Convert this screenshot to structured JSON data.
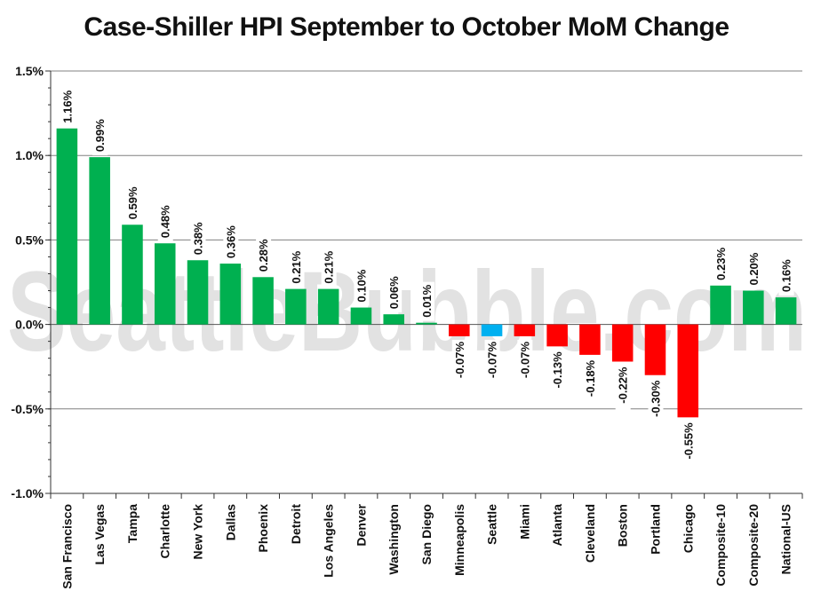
{
  "title": "Case-Shiller HPI September to October MoM Change",
  "watermark": "SeattleBubble.com",
  "colors": {
    "positive": "#00b050",
    "negative": "#ff0000",
    "highlight": "#00b0f0",
    "grid": "#808080",
    "watermark": "#e2e2e2"
  },
  "chart_data": {
    "type": "bar",
    "title": "Case-Shiller HPI September to October MoM Change",
    "categories": [
      "San Francisco",
      "Las Vegas",
      "Tampa",
      "Charlotte",
      "New York",
      "Dallas",
      "Phoenix",
      "Detroit",
      "Los Angeles",
      "Denver",
      "Washington",
      "San Diego",
      "Minneapolis",
      "Seattle",
      "Miami",
      "Atlanta",
      "Cleveland",
      "Boston",
      "Portland",
      "Chicago",
      "Composite-10",
      "Composite-20",
      "National-US"
    ],
    "values": [
      1.16,
      0.99,
      0.59,
      0.48,
      0.38,
      0.36,
      0.28,
      0.21,
      0.21,
      0.1,
      0.06,
      0.01,
      -0.07,
      -0.07,
      -0.07,
      -0.13,
      -0.18,
      -0.22,
      -0.3,
      -0.55,
      0.23,
      0.2,
      0.16
    ],
    "data_labels": [
      "1.16%",
      "0.99%",
      "0.59%",
      "0.48%",
      "0.38%",
      "0.36%",
      "0.28%",
      "0.21%",
      "0.21%",
      "0.10%",
      "0.06%",
      "0.01%",
      "-0.07%",
      "-0.07%",
      "-0.07%",
      "-0.13%",
      "-0.18%",
      "-0.22%",
      "-0.30%",
      "-0.55%",
      "0.23%",
      "0.20%",
      "0.16%"
    ],
    "highlight_category": "Seattle",
    "yticks": [
      "1.5%",
      "1.0%",
      "0.5%",
      "0.0%",
      "-0.5%",
      "-1.0%"
    ],
    "ytick_values": [
      1.5,
      1.0,
      0.5,
      0.0,
      -0.5,
      -1.0
    ],
    "ylim": [
      -1.0,
      1.5
    ],
    "grid": true,
    "xlabel": "",
    "ylabel": ""
  }
}
